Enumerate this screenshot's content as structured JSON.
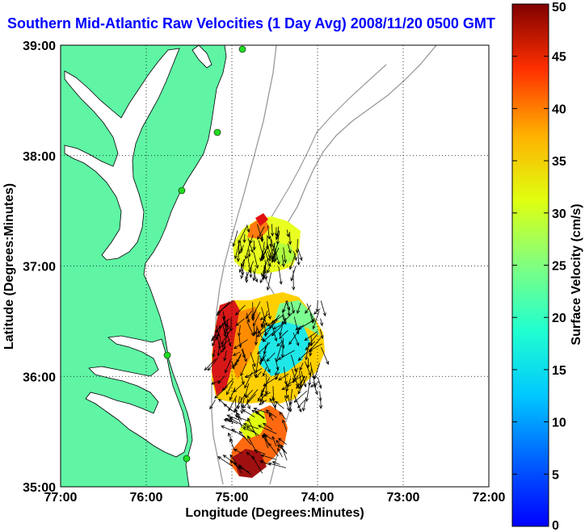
{
  "chart_data": {
    "type": "heatmap",
    "title": "Southern Mid-Atlantic Raw Velocities (1 Day Avg) 2008/11/20 0500 GMT",
    "xlabel": "Longitude (Degrees:Minutes)",
    "ylabel": "Latitude (Degrees:Minutes)",
    "x_tick_labels": [
      "77:00",
      "76:00",
      "75:00",
      "74:00",
      "73:00",
      "72:00"
    ],
    "y_tick_labels": [
      "35:00",
      "36:00",
      "37:00",
      "38:00",
      "39:00"
    ],
    "x_range_lon_west": [
      77,
      72
    ],
    "y_range_lat_north": [
      35,
      39
    ],
    "grid": "dotted",
    "colorbar": {
      "label": "Surface Velocity (cm/s)",
      "min": 0,
      "max": 50,
      "ticks": [
        "0",
        "5",
        "10",
        "15",
        "20",
        "25",
        "30",
        "35",
        "40",
        "45",
        "50"
      ],
      "colormap": "jet"
    },
    "colors": {
      "land": "#5ff5a5",
      "title": "#0000ff",
      "bathymetry": "#9a9a9a",
      "station": "#22dd22"
    }
  }
}
